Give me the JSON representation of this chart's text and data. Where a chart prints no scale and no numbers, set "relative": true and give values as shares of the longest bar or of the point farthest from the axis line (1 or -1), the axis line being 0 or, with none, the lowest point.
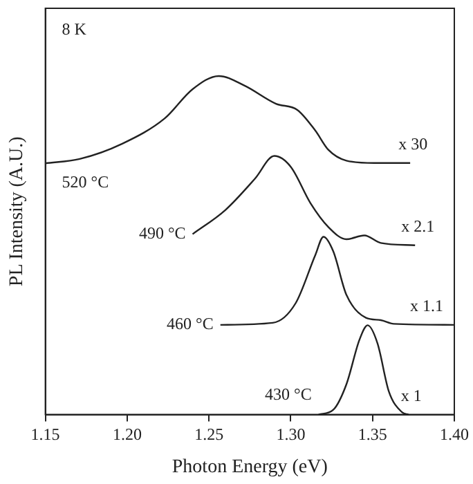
{
  "chart_data": {
    "type": "line",
    "xlabel": "Photon Energy (eV)",
    "ylabel": "PL Intensity (A.U.)",
    "relative": true,
    "xlim": [
      1.15,
      1.4
    ],
    "xticks": [
      1.15,
      {
        "value": 1.2,
        "label": "1.20"
      },
      1.25,
      {
        "value": 1.3,
        "label": "1.30"
      },
      1.35,
      {
        "value": 1.4,
        "label": "1.40"
      }
    ],
    "grid": false,
    "legend": false,
    "marker": "none",
    "line_style": "solid",
    "series": [
      {
        "name": "520 °C",
        "color": "#222222",
        "x": [
          1.15,
          1.171,
          1.197,
          1.223,
          1.24,
          1.256,
          1.272,
          1.291,
          1.304,
          1.315,
          1.323,
          1.334,
          1.351,
          1.373
        ],
        "values": [
          0.742,
          0.755,
          0.8,
          0.875,
          0.961,
          1,
          0.971,
          0.918,
          0.9,
          0.839,
          0.782,
          0.75,
          0.743,
          0.743
        ]
      },
      {
        "name": "490 °C",
        "color": "#222222",
        "x": [
          1.24,
          1.26,
          1.278,
          1.29,
          1.3,
          1.312,
          1.323,
          1.334,
          1.345,
          1.355,
          1.376
        ],
        "values": [
          0.533,
          0.604,
          0.696,
          0.764,
          0.732,
          0.625,
          0.554,
          0.518,
          0.529,
          0.507,
          0.5
        ]
      },
      {
        "name": "460 °C",
        "color": "#222222",
        "x": [
          1.257,
          1.289,
          1.303,
          1.315,
          1.32,
          1.326,
          1.334,
          1.346,
          1.355,
          1.363,
          1.4
        ],
        "values": [
          0.265,
          0.271,
          0.329,
          0.471,
          0.525,
          0.482,
          0.354,
          0.286,
          0.279,
          0.268,
          0.265
        ]
      },
      {
        "name": "430 °C",
        "color": "#222222",
        "x": [
          1.317,
          1.326,
          1.334,
          1.342,
          1.347,
          1.353,
          1.36,
          1.368,
          1.372
        ],
        "values": [
          0,
          0.014,
          0.089,
          0.221,
          0.264,
          0.211,
          0.068,
          0.007,
          0
        ]
      }
    ],
    "annotations": [
      "8 K",
      "x 30",
      "x 2.1",
      "x 1.1",
      "x 1"
    ]
  }
}
